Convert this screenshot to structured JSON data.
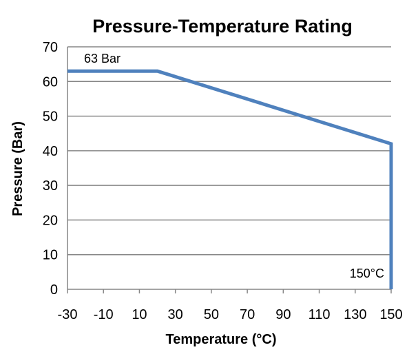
{
  "chart_data": {
    "type": "line",
    "title": "Pressure-Temperature Rating",
    "xlabel": "Temperature (°C)",
    "ylabel": "Pressure (Bar)",
    "x_tick_labels": [
      "-30",
      "-10",
      "10",
      "30",
      "50",
      "70",
      "90",
      "110",
      "130",
      "150"
    ],
    "y_ticks": [
      0,
      10,
      20,
      30,
      40,
      50,
      60,
      70
    ],
    "ylim": [
      0,
      70
    ],
    "xlim": [
      -30,
      150
    ],
    "grid": true,
    "series": [
      {
        "color": "#4f81bd",
        "x": [
          -30,
          20,
          150,
          150
        ],
        "y": [
          63,
          63,
          42,
          0
        ]
      }
    ],
    "annotations": [
      {
        "text": "63 Bar",
        "x": -30,
        "y": 63
      },
      {
        "text": "150°C",
        "x": 150,
        "y": 0
      }
    ]
  }
}
